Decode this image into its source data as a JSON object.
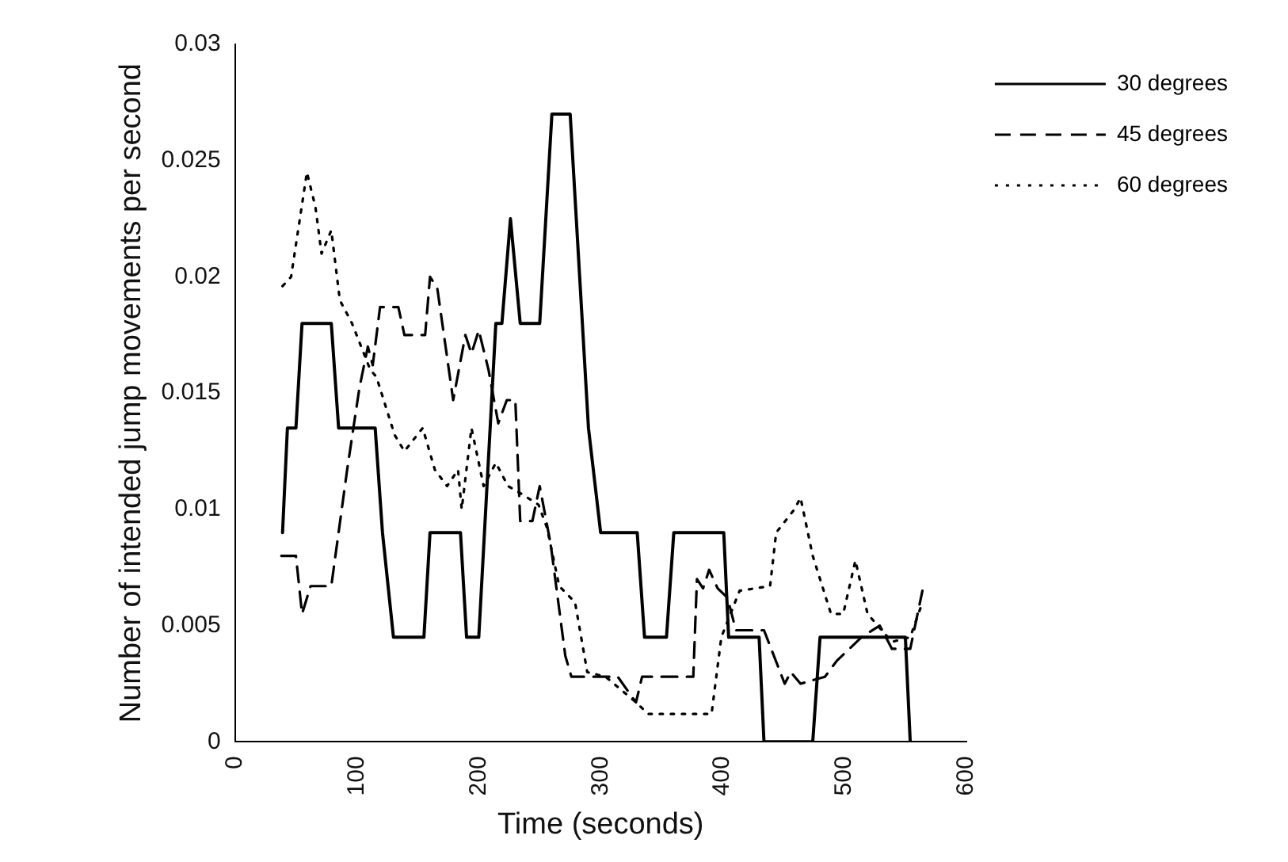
{
  "chart_data": {
    "type": "line",
    "xlabel": "Time (seconds)",
    "ylabel": "Number of intended jump movements per second",
    "xlim": [
      0,
      600
    ],
    "xticks": [
      0,
      100,
      200,
      300,
      400,
      500,
      600
    ],
    "ylim": [
      0,
      0.03
    ],
    "yticks": [
      0,
      0.005,
      0.01,
      0.015,
      0.02,
      0.025,
      0.03
    ],
    "grid": false,
    "legend": "top right",
    "marker": "none",
    "series": [
      {
        "name": "30 degrees",
        "color": "#000000",
        "line_style": "solid",
        "x": [
          39,
          43,
          50,
          55,
          79,
          85,
          115,
          121,
          130,
          155,
          160,
          185,
          190,
          200,
          214,
          219,
          226,
          234,
          250,
          260,
          275,
          290,
          300,
          330,
          336,
          354,
          360,
          401,
          405,
          430,
          434,
          474,
          480,
          550,
          554
        ],
        "values": [
          0.009,
          0.0135,
          0.0135,
          0.018,
          0.018,
          0.0135,
          0.0135,
          0.009,
          0.0045,
          0.0045,
          0.009,
          0.009,
          0.0045,
          0.0045,
          0.018,
          0.018,
          0.0225,
          0.018,
          0.018,
          0.027,
          0.027,
          0.0135,
          0.009,
          0.009,
          0.0045,
          0.0045,
          0.009,
          0.009,
          0.0045,
          0.0045,
          0,
          0,
          0.0045,
          0.0045,
          0
        ]
      },
      {
        "name": "45 degrees",
        "color": "#000000",
        "line_style": "dashed",
        "x": [
          38,
          50,
          55,
          62,
          79,
          92,
          102,
          109,
          113,
          119,
          134,
          139,
          156,
          160,
          166,
          179,
          189,
          194,
          200,
          208,
          216,
          223,
          230,
          234,
          244,
          250,
          259,
          271,
          276,
          314,
          329,
          334,
          376,
          379,
          384,
          389,
          396,
          404,
          411,
          434,
          451,
          456,
          464,
          484,
          494,
          514,
          529,
          539,
          554,
          564
        ],
        "values": [
          0.008,
          0.008,
          0.0055,
          0.0067,
          0.0067,
          0.0117,
          0.0152,
          0.017,
          0.0162,
          0.0187,
          0.0187,
          0.0175,
          0.0175,
          0.02,
          0.0195,
          0.0147,
          0.0175,
          0.0167,
          0.0177,
          0.016,
          0.0137,
          0.0147,
          0.0147,
          0.0095,
          0.0095,
          0.011,
          0.0085,
          0.0037,
          0.0028,
          0.0028,
          0.0017,
          0.0028,
          0.0028,
          0.007,
          0.0066,
          0.0074,
          0.0066,
          0.0062,
          0.0048,
          0.0048,
          0.0025,
          0.003,
          0.0025,
          0.0028,
          0.0035,
          0.0045,
          0.005,
          0.004,
          0.004,
          0.0065
        ]
      },
      {
        "name": "60 degrees",
        "color": "#000000",
        "line_style": "dotted",
        "x": [
          39,
          46,
          59,
          66,
          71,
          79,
          86,
          96,
          111,
          116,
          131,
          139,
          154,
          164,
          174,
          183,
          186,
          194,
          204,
          214,
          224,
          234,
          249,
          256,
          266,
          279,
          289,
          304,
          329,
          339,
          391,
          399,
          414,
          439,
          444,
          459,
          464,
          474,
          489,
          499,
          509,
          519,
          539,
          554,
          564
        ],
        "values": [
          0.0196,
          0.02,
          0.0245,
          0.023,
          0.021,
          0.022,
          0.019,
          0.018,
          0.016,
          0.0157,
          0.0132,
          0.0125,
          0.0135,
          0.0117,
          0.011,
          0.0117,
          0.01,
          0.0135,
          0.011,
          0.012,
          0.011,
          0.0107,
          0.0102,
          0.0092,
          0.0067,
          0.006,
          0.003,
          0.0028,
          0.0017,
          0.0012,
          0.0012,
          0.0045,
          0.0065,
          0.0067,
          0.009,
          0.01,
          0.0105,
          0.008,
          0.0055,
          0.0055,
          0.0078,
          0.0055,
          0.0043,
          0.0045,
          0.006
        ]
      }
    ]
  }
}
